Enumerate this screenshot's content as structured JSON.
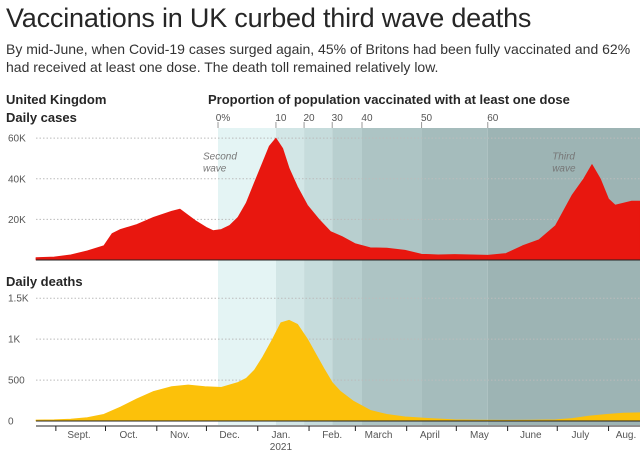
{
  "header": {
    "title": "Vaccinations in UK curbed third wave deaths",
    "subtitle": "By mid-June, when Covid-19 cases surged again, 45% of Britons had been fully vaccinated and 62% had received at least one dose. The death toll remained relatively low.",
    "region": "United Kingdom",
    "band_title": "Proportion of population vaccinated with at least one dose"
  },
  "chart_data": [
    {
      "type": "area",
      "title": "Daily cases",
      "color": "#e8170f",
      "ylim": [
        0,
        65000
      ],
      "yticks": [
        {
          "v": 20000,
          "label": "20K"
        },
        {
          "v": 40000,
          "label": "40K"
        },
        {
          "v": 60000,
          "label": "60K"
        }
      ],
      "x": [
        "2020-08-20",
        "2020-08-31",
        "2020-09-10",
        "2020-09-20",
        "2020-09-30",
        "2020-10-05",
        "2020-10-10",
        "2020-10-20",
        "2020-10-30",
        "2020-11-10",
        "2020-11-15",
        "2020-11-20",
        "2020-11-25",
        "2020-12-01",
        "2020-12-05",
        "2020-12-10",
        "2020-12-15",
        "2020-12-20",
        "2020-12-25",
        "2020-12-30",
        "2021-01-04",
        "2021-01-08",
        "2021-01-12",
        "2021-01-16",
        "2021-01-20",
        "2021-01-25",
        "2021-01-31",
        "2021-02-07",
        "2021-02-14",
        "2021-02-21",
        "2021-03-01",
        "2021-03-10",
        "2021-03-20",
        "2021-03-31",
        "2021-04-05",
        "2021-04-10",
        "2021-04-15",
        "2021-04-20",
        "2021-04-30",
        "2021-05-10",
        "2021-05-20",
        "2021-05-31",
        "2021-06-10",
        "2021-06-20",
        "2021-06-30",
        "2021-07-10",
        "2021-07-17",
        "2021-07-22",
        "2021-07-27",
        "2021-08-01",
        "2021-08-05",
        "2021-08-10",
        "2021-08-15",
        "2021-08-20"
      ],
      "values": [
        1200,
        1500,
        2500,
        4500,
        7000,
        13000,
        15000,
        17500,
        21000,
        24000,
        25000,
        22000,
        19000,
        16000,
        14500,
        15000,
        17000,
        21000,
        28000,
        38000,
        48000,
        56000,
        60000,
        55000,
        45000,
        36000,
        27000,
        20000,
        14000,
        11500,
        8000,
        6000,
        5800,
        4800,
        3800,
        2800,
        2700,
        2500,
        2700,
        2500,
        2300,
        3200,
        7000,
        10000,
        17000,
        32000,
        40000,
        47000,
        40000,
        30000,
        27000,
        28000,
        29000,
        29000
      ]
    },
    {
      "type": "area",
      "title": "Daily deaths",
      "color": "#fcc10a",
      "ylim": [
        0,
        1600
      ],
      "yticks": [
        {
          "v": 0,
          "label": "0"
        },
        {
          "v": 500,
          "label": "500"
        },
        {
          "v": 1000,
          "label": "1K"
        },
        {
          "v": 1500,
          "label": "1.5K"
        }
      ],
      "x": [
        "2020-08-20",
        "2020-08-31",
        "2020-09-10",
        "2020-09-20",
        "2020-09-30",
        "2020-10-10",
        "2020-10-20",
        "2020-10-30",
        "2020-11-10",
        "2020-11-20",
        "2020-11-30",
        "2020-12-10",
        "2020-12-20",
        "2020-12-25",
        "2020-12-30",
        "2021-01-04",
        "2021-01-10",
        "2021-01-15",
        "2021-01-20",
        "2021-01-25",
        "2021-01-31",
        "2021-02-05",
        "2021-02-10",
        "2021-02-15",
        "2021-02-20",
        "2021-02-28",
        "2021-03-10",
        "2021-03-20",
        "2021-03-31",
        "2021-04-15",
        "2021-04-30",
        "2021-05-15",
        "2021-05-31",
        "2021-06-15",
        "2021-06-30",
        "2021-07-10",
        "2021-07-20",
        "2021-07-31",
        "2021-08-10",
        "2021-08-20"
      ],
      "values": [
        12,
        15,
        22,
        40,
        80,
        170,
        270,
        360,
        420,
        440,
        420,
        410,
        470,
        520,
        620,
        780,
        1000,
        1200,
        1230,
        1180,
        1000,
        820,
        640,
        470,
        360,
        240,
        130,
        80,
        50,
        30,
        15,
        10,
        8,
        10,
        15,
        30,
        60,
        80,
        95,
        100
      ]
    }
  ],
  "x_axis": {
    "months": [
      {
        "date": "2020-09-15",
        "label": "Sept."
      },
      {
        "date": "2020-10-15",
        "label": "Oct."
      },
      {
        "date": "2020-11-15",
        "label": "Nov."
      },
      {
        "date": "2020-12-15",
        "label": "Dec."
      },
      {
        "date": "2021-01-15",
        "label": "Jan."
      },
      {
        "date": "2021-02-15",
        "label": "Feb."
      },
      {
        "date": "2021-03-15",
        "label": "March"
      },
      {
        "date": "2021-04-15",
        "label": "April"
      },
      {
        "date": "2021-05-15",
        "label": "May"
      },
      {
        "date": "2021-06-15",
        "label": "June"
      },
      {
        "date": "2021-07-15",
        "label": "July"
      },
      {
        "date": "2021-08-15",
        "label": "Aug."
      }
    ],
    "year_label": "2021"
  },
  "vaccination_bands": [
    {
      "label": "0%",
      "start": "2020-12-08",
      "end": "2021-01-12",
      "color": "#e4f4f4"
    },
    {
      "label": "10",
      "start": "2021-01-12",
      "end": "2021-01-29",
      "color": "#d2e6e6"
    },
    {
      "label": "20",
      "start": "2021-01-29",
      "end": "2021-02-15",
      "color": "#c6dcdc"
    },
    {
      "label": "30",
      "start": "2021-02-15",
      "end": "2021-03-05",
      "color": "#b8cfcf"
    },
    {
      "label": "40",
      "start": "2021-03-05",
      "end": "2021-04-10",
      "color": "#adc4c4"
    },
    {
      "label": "50",
      "start": "2021-04-10",
      "end": "2021-05-20",
      "color": "#a5bcbc"
    },
    {
      "label": "60",
      "start": "2021-05-20",
      "end": "2021-08-20",
      "color": "#9db4b4"
    }
  ],
  "annotations": [
    {
      "line1": "Second",
      "line2": "wave",
      "date": "2020-12-08",
      "value": 45000
    },
    {
      "line1": "Third",
      "line2": "wave",
      "date": "2021-07-07",
      "value": 45000
    }
  ]
}
